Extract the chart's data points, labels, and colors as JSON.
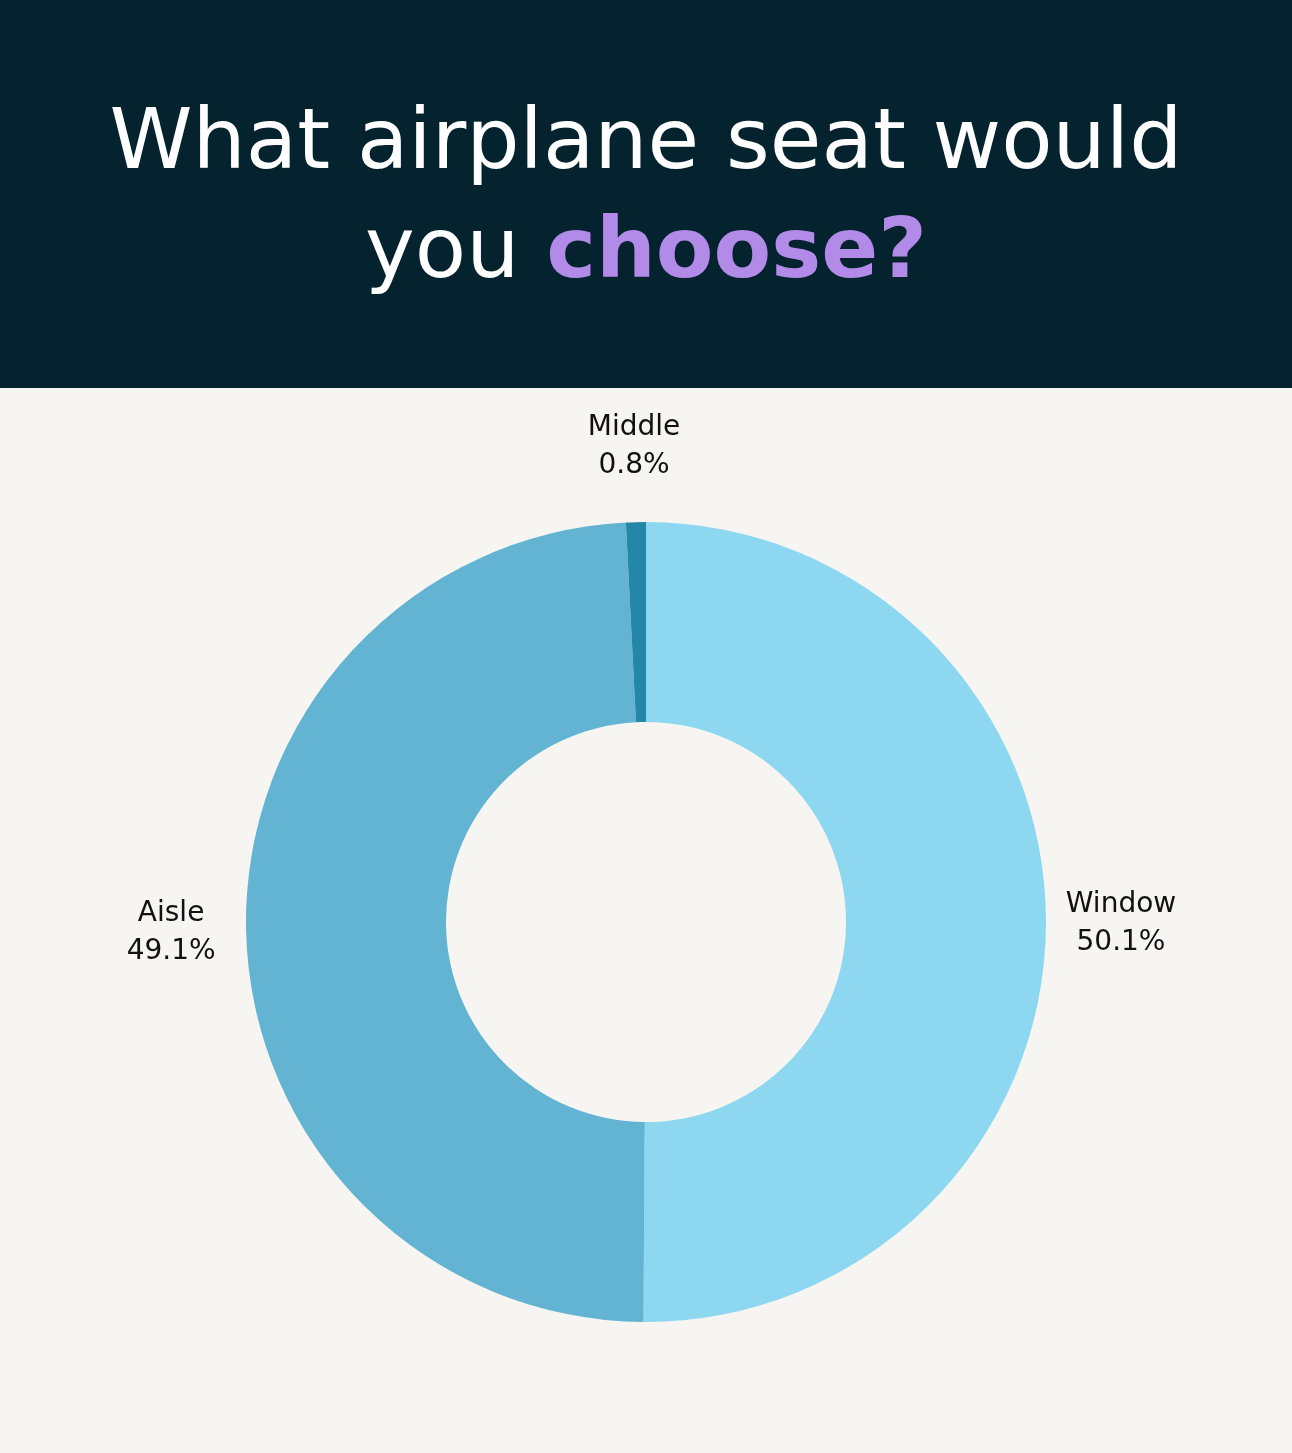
{
  "chart_data": {
    "type": "donut",
    "title": "What airplane seat would you choose?",
    "categories": [
      "Window",
      "Aisle",
      "Middle"
    ],
    "values": [
      50.1,
      49.1,
      0.8
    ],
    "colors": [
      "#8dd8f0",
      "#62b4d2",
      "#2587a8"
    ],
    "value_labels": [
      "50.1%",
      "49.1%",
      "0.8%"
    ],
    "legend": false
  }
}
